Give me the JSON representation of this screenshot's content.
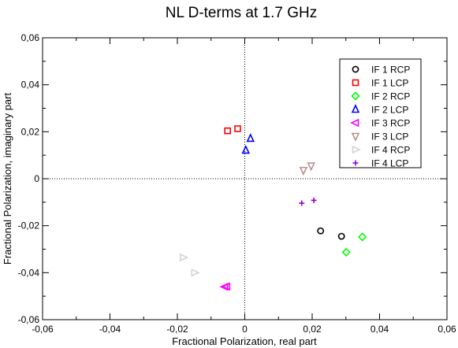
{
  "chart_data": {
    "type": "scatter",
    "title": "NL D-terms at 1.7 GHz",
    "xlabel": "Fractional Polarization, real part",
    "ylabel": "Fractional Polarization, imaginary part",
    "xlim": [
      -0.06,
      0.06
    ],
    "ylim": [
      -0.06,
      0.06
    ],
    "xticks": [
      "-0,06",
      "-0,04",
      "-0,02",
      "0",
      "0,02",
      "0,04",
      "0,06"
    ],
    "yticks": [
      "-0,06",
      "-0,04",
      "-0,02",
      "0",
      "0,02",
      "0,04",
      "0,06"
    ],
    "grid": false,
    "zero_lines": true,
    "legend_position": "top-right",
    "series": [
      {
        "name": "IF 1 RCP",
        "marker": "circle",
        "color": "#000000",
        "points": [
          [
            0.0225,
            -0.0222
          ],
          [
            0.0287,
            -0.0245
          ]
        ]
      },
      {
        "name": "IF 1 LCP",
        "marker": "square",
        "color": "#ff0000",
        "points": [
          [
            -0.0051,
            0.0204
          ],
          [
            -0.0021,
            0.0213
          ]
        ]
      },
      {
        "name": "IF 2 RCP",
        "marker": "diamond",
        "color": "#00ff00",
        "points": [
          [
            0.0349,
            -0.0248
          ],
          [
            0.0301,
            -0.0313
          ]
        ]
      },
      {
        "name": "IF 2 LCP",
        "marker": "triangle-up",
        "color": "#0000ff",
        "points": [
          [
            0.0017,
            0.0171
          ],
          [
            0.0003,
            0.0121
          ]
        ]
      },
      {
        "name": "IF 3 RCP",
        "marker": "triangle-left",
        "color": "#ff00ff",
        "points": [
          [
            -0.0053,
            -0.0459
          ],
          [
            -0.0059,
            -0.046
          ]
        ]
      },
      {
        "name": "IF 3 LCP",
        "marker": "triangle-down",
        "color": "#bc8f8f",
        "points": [
          [
            0.0174,
            0.0036
          ],
          [
            0.0197,
            0.0055
          ]
        ]
      },
      {
        "name": "IF 4 RCP",
        "marker": "triangle-right",
        "color": "#d3d3d3",
        "points": [
          [
            -0.0183,
            -0.0335
          ],
          [
            -0.0149,
            -0.04
          ]
        ]
      },
      {
        "name": "IF 4 LCP",
        "marker": "plus",
        "color": "#9400d3",
        "points": [
          [
            0.0169,
            -0.0104
          ],
          [
            0.0205,
            -0.0092
          ]
        ]
      }
    ]
  }
}
